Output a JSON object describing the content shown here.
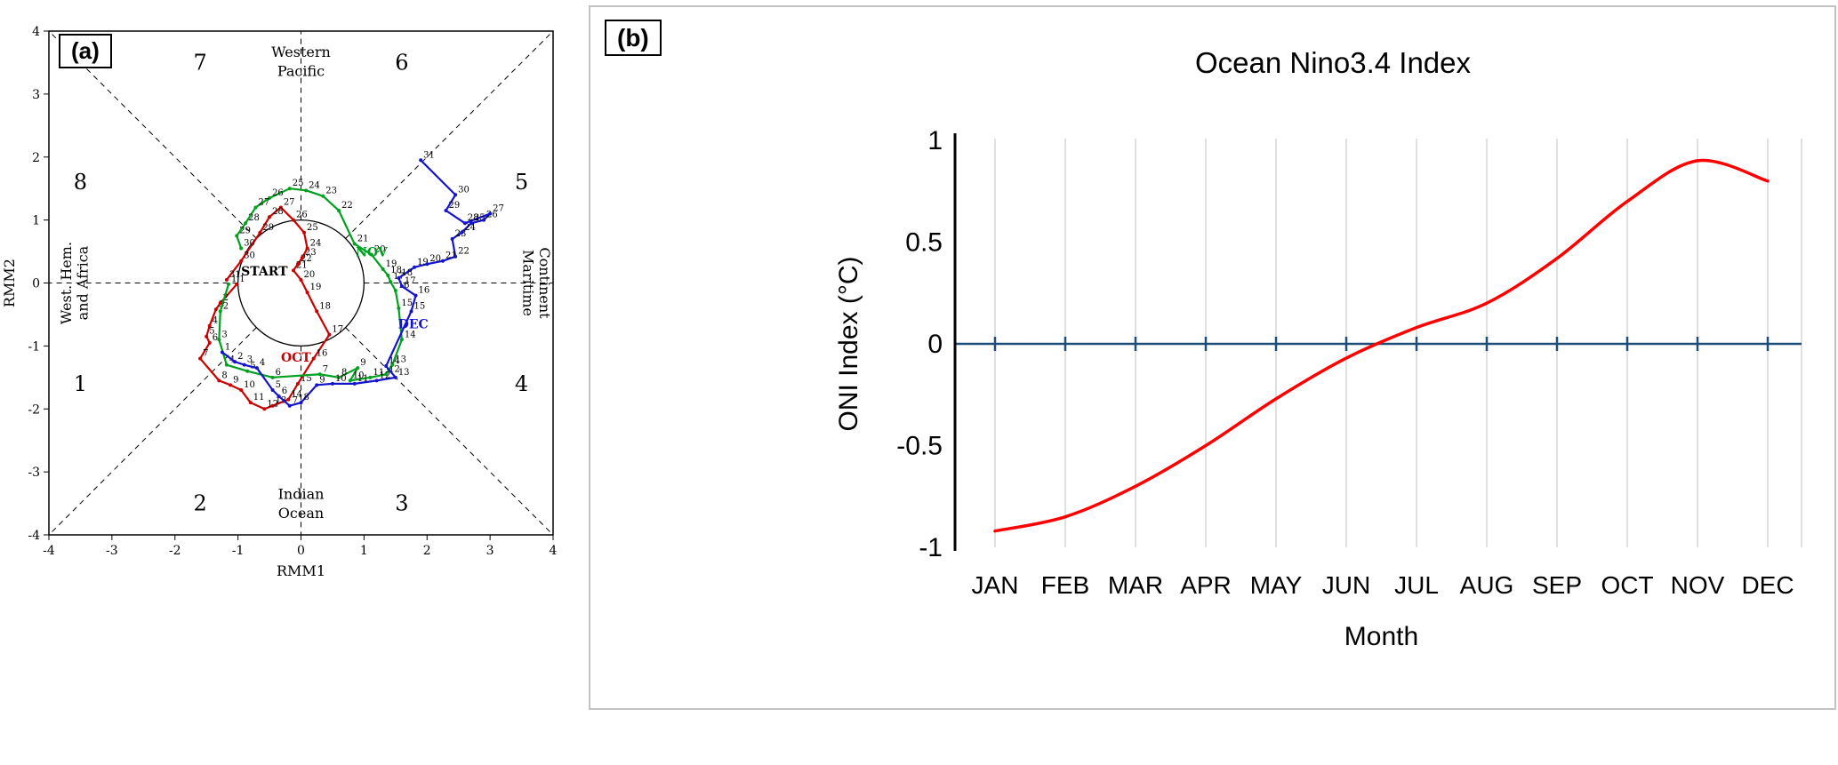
{
  "figure": {
    "background": "#ffffff"
  },
  "chart_data": [
    {
      "type": "line",
      "panel_label": "(a)",
      "description": "MJO RMM1-RMM2 phase-space trajectory diagram",
      "xlabel": "RMM1",
      "ylabel": "RMM2",
      "xlim": [
        -4,
        4
      ],
      "ylim": [
        -4,
        4
      ],
      "xticks": [
        -4,
        -3,
        -2,
        -1,
        0,
        1,
        2,
        3,
        4
      ],
      "yticks": [
        -4,
        -3,
        -2,
        -1,
        0,
        1,
        2,
        3,
        4
      ],
      "unit_circle_radius": 1,
      "grid": "dashed-octants",
      "phase_labels": [
        {
          "label": "7",
          "x": -1.6,
          "y": 3.5
        },
        {
          "label": "6",
          "x": 1.6,
          "y": 3.5
        },
        {
          "label": "8",
          "x": -3.5,
          "y": 1.6
        },
        {
          "label": "5",
          "x": 3.5,
          "y": 1.6
        },
        {
          "label": "1",
          "x": -3.5,
          "y": -1.6
        },
        {
          "label": "4",
          "x": 3.5,
          "y": -1.6
        },
        {
          "label": "2",
          "x": -1.6,
          "y": -3.5
        },
        {
          "label": "3",
          "x": 1.6,
          "y": -3.5
        }
      ],
      "region_labels": [
        {
          "rot": 0,
          "lines": [
            {
              "text": "Western",
              "x": 0,
              "y": 3.66
            },
            {
              "text": "Pacific",
              "x": 0,
              "y": 3.36
            }
          ]
        },
        {
          "rot": 0,
          "lines": [
            {
              "text": "Indian",
              "x": 0,
              "y": -3.36
            },
            {
              "text": "Ocean",
              "x": 0,
              "y": -3.66
            }
          ]
        },
        {
          "rot": 90,
          "lines": [
            {
              "text": "Maritime",
              "x": 3.6,
              "y": 0
            },
            {
              "text": "Continent",
              "x": 3.86,
              "y": 0
            }
          ]
        },
        {
          "rot": -90,
          "lines": [
            {
              "text": "West. Hem.",
              "x": -3.72,
              "y": 0
            },
            {
              "text": "and Africa",
              "x": -3.46,
              "y": 0
            }
          ]
        }
      ],
      "annotations": [
        {
          "text": "START",
          "x": -0.95,
          "y": 0.12,
          "color": "#000000",
          "anchor": "start"
        },
        {
          "text": "OCT",
          "x": -0.08,
          "y": -1.25,
          "color": "#cc0000",
          "anchor": "middle"
        },
        {
          "text": "NOV",
          "x": 1.12,
          "y": 0.42,
          "color": "#00a020",
          "anchor": "middle"
        },
        {
          "text": "DEC",
          "x": 1.78,
          "y": -0.72,
          "color": "#1414cc",
          "anchor": "middle"
        }
      ],
      "series": [
        {
          "name": "OCT",
          "color": "#cc0000",
          "points": [
            [
              1,
              -1.02,
              -0.02
            ],
            [
              2,
              -1.28,
              -0.32
            ],
            [
              3,
              -1.35,
              -0.42
            ],
            [
              4,
              -1.45,
              -0.68
            ],
            [
              5,
              -1.5,
              -0.85
            ],
            [
              6,
              -1.45,
              -0.95
            ],
            [
              7,
              -1.6,
              -1.2
            ],
            [
              8,
              -1.3,
              -1.55
            ],
            [
              9,
              -1.12,
              -1.62
            ],
            [
              10,
              -0.95,
              -1.7
            ],
            [
              11,
              -0.8,
              -1.9
            ],
            [
              12,
              -0.58,
              -2.0
            ],
            [
              13,
              -0.45,
              -1.95
            ],
            [
              14,
              -0.2,
              -1.85
            ],
            [
              15,
              -0.05,
              -1.6
            ],
            [
              16,
              0.2,
              -1.2
            ],
            [
              17,
              0.45,
              -0.82
            ],
            [
              18,
              0.25,
              -0.45
            ],
            [
              19,
              0.1,
              -0.15
            ],
            [
              20,
              0,
              0.05
            ],
            [
              21,
              -0.12,
              0.2
            ],
            [
              22,
              -0.05,
              0.3
            ],
            [
              23,
              0.02,
              0.4
            ],
            [
              24,
              0.1,
              0.55
            ],
            [
              25,
              0.05,
              0.8
            ],
            [
              26,
              -0.12,
              1.0
            ],
            [
              27,
              -0.32,
              1.2
            ],
            [
              28,
              -0.5,
              1.05
            ],
            [
              29,
              -0.65,
              0.8
            ],
            [
              30,
              -0.95,
              0.35
            ],
            [
              31,
              -1.18,
              0.05
            ]
          ]
        },
        {
          "name": "NOV",
          "color": "#00a020",
          "points": [
            [
              1,
              -1.15,
              -0.02
            ],
            [
              2,
              -1.28,
              -0.45
            ],
            [
              3,
              -1.3,
              -0.9
            ],
            [
              4,
              -1.18,
              -1.3
            ],
            [
              5,
              -0.85,
              -1.4
            ],
            [
              6,
              -0.45,
              -1.5
            ],
            [
              7,
              0.3,
              -1.45
            ],
            [
              8,
              0.6,
              -1.5
            ],
            [
              9,
              0.9,
              -1.35
            ],
            [
              10,
              0.78,
              -1.55
            ],
            [
              11,
              1.1,
              -1.5
            ],
            [
              12,
              1.35,
              -1.45
            ],
            [
              13,
              1.45,
              -1.3
            ],
            [
              14,
              1.6,
              -0.9
            ],
            [
              15,
              1.55,
              -0.4
            ],
            [
              16,
              1.5,
              -0.12
            ],
            [
              17,
              1.42,
              0.02
            ],
            [
              18,
              1.38,
              0.12
            ],
            [
              19,
              1.3,
              0.22
            ],
            [
              20,
              1.12,
              0.45
            ],
            [
              21,
              0.85,
              0.62
            ],
            [
              22,
              0.6,
              1.15
            ],
            [
              23,
              0.35,
              1.38
            ],
            [
              24,
              0.08,
              1.47
            ],
            [
              25,
              -0.18,
              1.5
            ],
            [
              26,
              -0.5,
              1.35
            ],
            [
              27,
              -0.72,
              1.2
            ],
            [
              28,
              -0.88,
              0.95
            ],
            [
              29,
              -1.02,
              0.75
            ],
            [
              30,
              -0.95,
              0.55
            ]
          ]
        },
        {
          "name": "DEC",
          "color": "#1414cc",
          "points": [
            [
              1,
              -1.25,
              -1.1
            ],
            [
              2,
              -1.05,
              -1.25
            ],
            [
              3,
              -0.9,
              -1.3
            ],
            [
              4,
              -0.7,
              -1.35
            ],
            [
              5,
              -0.45,
              -1.7
            ],
            [
              6,
              -0.35,
              -1.8
            ],
            [
              7,
              -0.18,
              -1.95
            ],
            [
              8,
              0,
              -1.9
            ],
            [
              9,
              0.25,
              -1.62
            ],
            [
              10,
              0.5,
              -1.6
            ],
            [
              11,
              0.85,
              -1.6
            ],
            [
              12,
              1.2,
              -1.55
            ],
            [
              13,
              1.5,
              -1.5
            ],
            [
              14,
              1.35,
              -1.32
            ],
            [
              15,
              1.75,
              -0.45
            ],
            [
              16,
              1.82,
              -0.2
            ],
            [
              17,
              1.6,
              -0.05
            ],
            [
              18,
              1.55,
              0.08
            ],
            [
              19,
              1.8,
              0.25
            ],
            [
              20,
              2.0,
              0.3
            ],
            [
              21,
              2.25,
              0.35
            ],
            [
              22,
              2.45,
              0.42
            ],
            [
              23,
              2.4,
              0.7
            ],
            [
              24,
              2.55,
              0.8
            ],
            [
              25,
              2.7,
              0.95
            ],
            [
              26,
              2.9,
              1.0
            ],
            [
              27,
              3.0,
              1.1
            ],
            [
              28,
              2.6,
              0.95
            ],
            [
              29,
              2.3,
              1.15
            ],
            [
              30,
              2.45,
              1.4
            ],
            [
              31,
              1.9,
              1.95
            ]
          ]
        }
      ]
    },
    {
      "type": "line",
      "panel_label": "(b)",
      "title": "Ocean Nino3.4 Index",
      "xlabel": "Month",
      "ylabel": "ONI Index (°C)",
      "categories": [
        "JAN",
        "FEB",
        "MAR",
        "APR",
        "MAY",
        "JUN",
        "JUL",
        "AUG",
        "SEP",
        "OCT",
        "NOV",
        "DEC"
      ],
      "values": [
        -0.92,
        -0.85,
        -0.7,
        -0.5,
        -0.27,
        -0.07,
        0.08,
        0.2,
        0.42,
        0.7,
        0.9,
        0.8
      ],
      "ylim": [
        -1,
        1
      ],
      "yticks": [
        1,
        0.5,
        0,
        -0.5,
        -1
      ],
      "ytick_labels": [
        "1",
        "0.5",
        "0",
        "-0.5",
        "-1"
      ],
      "line_color": "#ff0000",
      "zero_line_color": "#1f4e79",
      "grid_color": "#d6d6d6",
      "grid": "vertical",
      "legend": "none"
    }
  ]
}
